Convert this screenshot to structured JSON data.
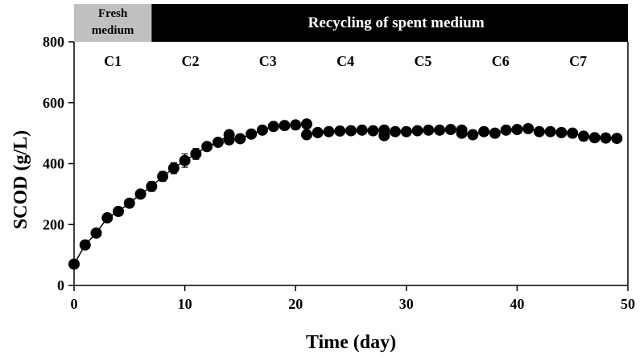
{
  "chart_data": {
    "type": "scatter",
    "title": "",
    "xlabel": "Time (day)",
    "ylabel": "SCOD (g/L)",
    "xlim": [
      0,
      50
    ],
    "ylim": [
      0,
      800
    ],
    "x_ticks": [
      0,
      10,
      20,
      30,
      40,
      50
    ],
    "y_ticks": [
      0,
      200,
      400,
      600,
      800
    ],
    "grid": false,
    "legend": "none",
    "marker_color": "#000000",
    "banners": [
      {
        "label_line1": "Fresh",
        "label_line2": "medium",
        "x_start": 0,
        "x_end": 7,
        "fill": "#c0c0c0"
      },
      {
        "label": "Recycling of spent medium",
        "x_start": 7,
        "x_end": 50,
        "fill": "#000000"
      }
    ],
    "cycles": [
      {
        "label": "C1",
        "x": 3.5
      },
      {
        "label": "C2",
        "x": 10.5
      },
      {
        "label": "C3",
        "x": 17.5
      },
      {
        "label": "C4",
        "x": 24.5
      },
      {
        "label": "C5",
        "x": 31.5
      },
      {
        "label": "C6",
        "x": 38.5
      },
      {
        "label": "C7",
        "x": 45.5
      }
    ],
    "series": [
      {
        "x": [
          0,
          1,
          2,
          3,
          4,
          5,
          6,
          7,
          8,
          9,
          10,
          11,
          12,
          13,
          14,
          14,
          15,
          16,
          17,
          18,
          19,
          20,
          21,
          21,
          22,
          23,
          24,
          25,
          26,
          27,
          28,
          28,
          29,
          30,
          31,
          32,
          33,
          34,
          35,
          35,
          36,
          37,
          38,
          39,
          40,
          41,
          42,
          43,
          44,
          45,
          46,
          47,
          48,
          49
        ],
        "y": [
          70,
          133,
          172,
          222,
          243,
          270,
          300,
          325,
          358,
          385,
          410,
          432,
          456,
          470,
          495,
          478,
          482,
          497,
          510,
          522,
          525,
          527,
          530,
          495,
          502,
          505,
          507,
          508,
          510,
          508,
          510,
          492,
          505,
          505,
          508,
          510,
          510,
          512,
          510,
          500,
          495,
          505,
          500,
          510,
          512,
          515,
          505,
          505,
          502,
          500,
          490,
          485,
          484,
          483
        ],
        "err": [
          12,
          12,
          10,
          10,
          10,
          12,
          12,
          16,
          16,
          18,
          22,
          18,
          14,
          10,
          10,
          8,
          8,
          8,
          8,
          8,
          8,
          8,
          8,
          8,
          8,
          8,
          8,
          8,
          8,
          8,
          12,
          8,
          8,
          8,
          8,
          8,
          8,
          8,
          8,
          8,
          8,
          8,
          8,
          8,
          8,
          8,
          8,
          8,
          8,
          8,
          8,
          8,
          8,
          8
        ]
      }
    ]
  }
}
